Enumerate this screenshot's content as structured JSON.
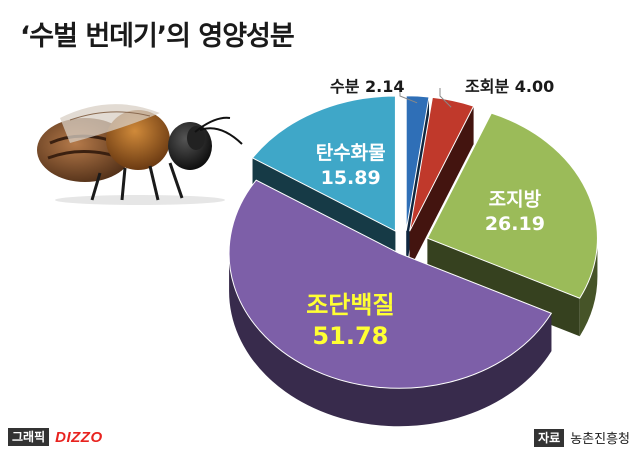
{
  "title": "‘수벌 번데기’의 영양성분",
  "footer": {
    "graphic_tag": "그래픽",
    "brand": "DIZZO",
    "source_tag": "자료",
    "source_name": "농촌진흥청"
  },
  "colors": {
    "crude_protein": "#7d5fa8",
    "crude_fat": "#9bbb59",
    "carbohydrate": "#3fa7c8",
    "moisture": "#2f6fb7",
    "crude_ash": "#c0392b"
  },
  "illustration": "bee-icon",
  "chart_data": {
    "type": "pie",
    "title": "‘수벌 번데기’의 영양성분",
    "style": "3d-exploded",
    "slices": [
      {
        "label": "수분",
        "value": 2.14,
        "value_text": "2.14",
        "color": "#2f6fb7",
        "placement": "callout"
      },
      {
        "label": "조회분",
        "value": 4.0,
        "value_text": "4.00",
        "color": "#c0392b",
        "placement": "callout"
      },
      {
        "label": "조지방",
        "value": 26.19,
        "value_text": "26.19",
        "color": "#9bbb59",
        "placement": "inside"
      },
      {
        "label": "조단백질",
        "value": 51.78,
        "value_text": "51.78",
        "color": "#7d5fa8",
        "placement": "inside"
      },
      {
        "label": "탄수화물",
        "value": 15.89,
        "value_text": "15.89",
        "color": "#3fa7c8",
        "placement": "inside"
      }
    ]
  }
}
